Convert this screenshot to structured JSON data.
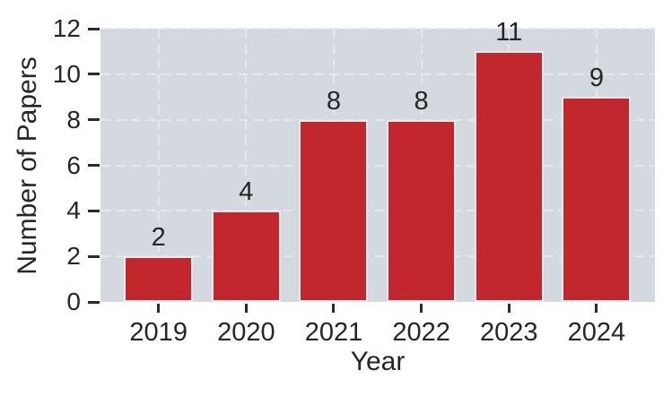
{
  "chart_data": {
    "type": "bar",
    "title": "",
    "xlabel": "Year",
    "ylabel": "Number of Papers",
    "categories": [
      "2019",
      "2020",
      "2021",
      "2022",
      "2023",
      "2024"
    ],
    "values": [
      2,
      4,
      8,
      8,
      11,
      9
    ],
    "bar_labels": [
      "2",
      "4",
      "8",
      "8",
      "11",
      "9"
    ],
    "ylim": [
      0,
      12
    ],
    "yticks": [
      0,
      2,
      4,
      6,
      8,
      10,
      12
    ],
    "legend": "none",
    "grid": "dashed horizontal and vertical gridlines under bars",
    "colors": {
      "bar_fill": "#c2272d",
      "bar_edge": "#e7eaee",
      "plot_background": "#d4d8df",
      "gridline": "#e4e7ec",
      "figure_background": "#ffffff",
      "text": "#262626",
      "tick_mark": "#2b2b2b"
    }
  }
}
